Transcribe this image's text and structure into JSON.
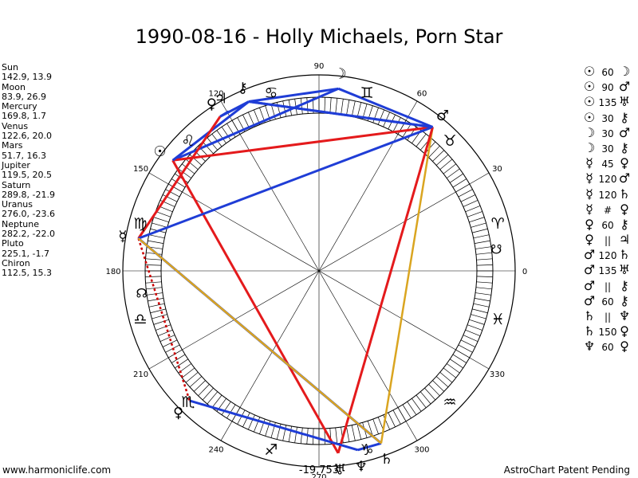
{
  "title": "1990-08-16 - Holly Michaels, Porn Star",
  "footer": {
    "site": "www.harmoniclife.com",
    "credit": "AstroChart Patent Pending",
    "bottom_value": "-19,753"
  },
  "colors": {
    "square_opposition": "#e41a1c",
    "trine_sextile": "#1f3dd6",
    "quincunx": "#daa520",
    "parallel": "#cc0000"
  },
  "planets": [
    {
      "name": "Sun",
      "values": "142.9, 13.9",
      "glyph": "☉",
      "lon": 142.9
    },
    {
      "name": "Moon",
      "values": "83.9, 26.9",
      "glyph": "☽",
      "lon": 83.9
    },
    {
      "name": "Mercury",
      "values": "169.8, 1.7",
      "glyph": "☿",
      "lon": 169.8
    },
    {
      "name": "Venus",
      "values": "122.6, 20.0",
      "glyph": "♀",
      "lon": 122.6
    },
    {
      "name": "Mars",
      "values": "51.7, 16.3",
      "glyph": "♂",
      "lon": 51.7
    },
    {
      "name": "Jupiter",
      "values": "119.5, 20.5",
      "glyph": "♃",
      "lon": 119.5
    },
    {
      "name": "Saturn",
      "values": "289.8, -21.9",
      "glyph": "♄",
      "lon": 289.8
    },
    {
      "name": "Uranus",
      "values": "276.0, -23.6",
      "glyph": "♅",
      "lon": 276.0
    },
    {
      "name": "Neptune",
      "values": "282.2, -22.0",
      "glyph": "♆",
      "lon": 282.2
    },
    {
      "name": "Pluto",
      "values": "225.1, -1.7",
      "glyph": "♀",
      "lon": 225.1
    },
    {
      "name": "Chiron",
      "values": "112.5, 15.3",
      "glyph": "⚷",
      "lon": 112.5
    }
  ],
  "degree_labels": [
    {
      "text": "0",
      "deg": 0
    },
    {
      "text": "30",
      "deg": 30
    },
    {
      "text": "60",
      "deg": 60
    },
    {
      "text": "90",
      "deg": 90
    },
    {
      "text": "120",
      "deg": 120
    },
    {
      "text": "150",
      "deg": 150
    },
    {
      "text": "180",
      "deg": 180
    },
    {
      "text": "210",
      "deg": 210
    },
    {
      "text": "240",
      "deg": 240
    },
    {
      "text": "270",
      "deg": 270
    },
    {
      "text": "300",
      "deg": 300
    },
    {
      "text": "330",
      "deg": 330
    }
  ],
  "signs": [
    {
      "glyph": "♈",
      "deg": 15
    },
    {
      "glyph": "♉",
      "deg": 45
    },
    {
      "glyph": "♊",
      "deg": 75
    },
    {
      "glyph": "♋",
      "deg": 105
    },
    {
      "glyph": "♌",
      "deg": 135
    },
    {
      "glyph": "♍",
      "deg": 165
    },
    {
      "glyph": "♎",
      "deg": 195
    },
    {
      "glyph": "♏",
      "deg": 225
    },
    {
      "glyph": "♐",
      "deg": 255
    },
    {
      "glyph": "♑",
      "deg": 285
    },
    {
      "glyph": "♒",
      "deg": 315
    },
    {
      "glyph": "♓",
      "deg": 345
    }
  ],
  "nodes": [
    {
      "glyph": "☊",
      "deg": 187
    },
    {
      "glyph": "☋",
      "deg": 7
    }
  ],
  "aspects": [
    {
      "p1": "☉",
      "angle": "60",
      "p2": "☽",
      "from": "Sun",
      "to": "Moon",
      "type": "trine_sextile"
    },
    {
      "p1": "☉",
      "angle": "90",
      "p2": "♂",
      "from": "Sun",
      "to": "Mars",
      "type": "square_opposition"
    },
    {
      "p1": "☉",
      "angle": "135",
      "p2": "♅",
      "from": "Sun",
      "to": "Uranus",
      "type": "square_opposition"
    },
    {
      "p1": "☉",
      "angle": "30",
      "p2": "⚷",
      "from": "Sun",
      "to": "Chiron",
      "type": "trine_sextile"
    },
    {
      "p1": "☽",
      "angle": "30",
      "p2": "♂",
      "from": "Moon",
      "to": "Mars",
      "type": "trine_sextile"
    },
    {
      "p1": "☽",
      "angle": "30",
      "p2": "⚷",
      "from": "Moon",
      "to": "Chiron",
      "type": "trine_sextile"
    },
    {
      "p1": "☿",
      "angle": "45",
      "p2": "♀",
      "from": "Mercury",
      "to": "Venus",
      "type": "square_opposition"
    },
    {
      "p1": "☿",
      "angle": "120",
      "p2": "♂",
      "from": "Mercury",
      "to": "Mars",
      "type": "trine_sextile"
    },
    {
      "p1": "☿",
      "angle": "120",
      "p2": "♄",
      "from": "Mercury",
      "to": "Saturn",
      "type": "trine_sextile"
    },
    {
      "p1": "☿",
      "angle": "#",
      "p2": "♀",
      "from": "Mercury",
      "to": "Pluto",
      "type": "parallel"
    },
    {
      "p1": "♀",
      "angle": "60",
      "p2": "⚷",
      "from": "Venus",
      "to": "Chiron",
      "type": "trine_sextile"
    },
    {
      "p1": "♀",
      "angle": "||",
      "p2": "♃",
      "from": "Venus",
      "to": "Jupiter",
      "type": "trine_sextile"
    },
    {
      "p1": "♂",
      "angle": "120",
      "p2": "♄",
      "from": "Mars",
      "to": "Saturn",
      "type": "quincunx"
    },
    {
      "p1": "♂",
      "angle": "135",
      "p2": "♅",
      "from": "Mars",
      "to": "Uranus",
      "type": "square_opposition"
    },
    {
      "p1": "♂",
      "angle": "||",
      "p2": "⚷",
      "from": "Mars",
      "to": "Chiron",
      "type": "trine_sextile"
    },
    {
      "p1": "♂",
      "angle": "60",
      "p2": "⚷",
      "from": "Mars",
      "to": "Chiron",
      "type": "trine_sextile"
    },
    {
      "p1": "♄",
      "angle": "||",
      "p2": "♆",
      "from": "Saturn",
      "to": "Neptune",
      "type": "trine_sextile"
    },
    {
      "p1": "♄",
      "angle": "150",
      "p2": "♀",
      "from": "Saturn",
      "to": "Mercury",
      "type": "quincunx"
    },
    {
      "p1": "♆",
      "angle": "60",
      "p2": "♀",
      "from": "Neptune",
      "to": "Pluto",
      "type": "trine_sextile"
    }
  ]
}
